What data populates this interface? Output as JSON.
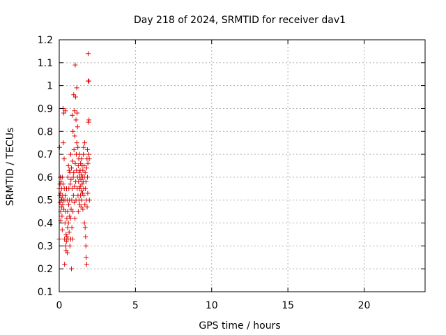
{
  "chart_data": {
    "type": "scatter",
    "title": "Day 218 of 2024, SRMTID for receiver dav1",
    "xlabel": "GPS time / hours",
    "ylabel": "SRMTID / TECUs",
    "xlim": [
      0,
      24
    ],
    "ylim": [
      0.1,
      1.2
    ],
    "x_ticks": [
      0,
      5,
      10,
      15,
      20
    ],
    "y_ticks": [
      0.1,
      0.2,
      0.3,
      0.4,
      0.5,
      0.6,
      0.7,
      0.8,
      0.9,
      1,
      1.1,
      1.2
    ],
    "x_tick_labels": [
      "0",
      "5",
      "10",
      "15",
      "20"
    ],
    "y_tick_labels": [
      "0.1",
      "0.2",
      "0.3",
      "0.4",
      "0.5",
      "0.6",
      "0.7",
      "0.8",
      "0.9",
      "1",
      "1.1",
      "1.2"
    ],
    "grid": true,
    "marker": "+",
    "color": "#e00000",
    "points": [
      [
        0.0,
        0.55
      ],
      [
        0.0,
        0.33
      ],
      [
        0.02,
        0.73
      ],
      [
        0.03,
        0.52
      ],
      [
        0.05,
        0.57
      ],
      [
        0.05,
        0.49
      ],
      [
        0.07,
        0.6
      ],
      [
        0.08,
        0.53
      ],
      [
        0.1,
        0.45
      ],
      [
        0.1,
        0.41
      ],
      [
        0.12,
        0.58
      ],
      [
        0.13,
        0.51
      ],
      [
        0.15,
        0.47
      ],
      [
        0.15,
        0.55
      ],
      [
        0.17,
        0.5
      ],
      [
        0.18,
        0.43
      ],
      [
        0.2,
        0.6
      ],
      [
        0.2,
        0.37
      ],
      [
        0.22,
        0.52
      ],
      [
        0.23,
        0.48
      ],
      [
        0.25,
        0.9
      ],
      [
        0.25,
        0.57
      ],
      [
        0.27,
        0.75
      ],
      [
        0.28,
        0.5
      ],
      [
        0.3,
        0.88
      ],
      [
        0.3,
        0.46
      ],
      [
        0.32,
        0.68
      ],
      [
        0.33,
        0.55
      ],
      [
        0.35,
        0.22
      ],
      [
        0.35,
        0.33
      ],
      [
        0.37,
        0.5
      ],
      [
        0.38,
        0.4
      ],
      [
        0.4,
        0.89
      ],
      [
        0.4,
        0.52
      ],
      [
        0.42,
        0.3
      ],
      [
        0.43,
        0.45
      ],
      [
        0.45,
        0.35
      ],
      [
        0.45,
        0.28
      ],
      [
        0.47,
        0.32
      ],
      [
        0.48,
        0.55
      ],
      [
        0.5,
        0.42
      ],
      [
        0.5,
        0.34
      ],
      [
        0.52,
        0.5
      ],
      [
        0.53,
        0.27
      ],
      [
        0.55,
        0.38
      ],
      [
        0.55,
        0.45
      ],
      [
        0.57,
        0.6
      ],
      [
        0.58,
        0.33
      ],
      [
        0.6,
        0.65
      ],
      [
        0.6,
        0.4
      ],
      [
        0.62,
        0.48
      ],
      [
        0.63,
        0.55
      ],
      [
        0.65,
        0.63
      ],
      [
        0.65,
        0.36
      ],
      [
        0.67,
        0.5
      ],
      [
        0.68,
        0.43
      ],
      [
        0.7,
        0.62
      ],
      [
        0.7,
        0.3
      ],
      [
        0.72,
        0.57
      ],
      [
        0.73,
        0.42
      ],
      [
        0.75,
        0.7
      ],
      [
        0.75,
        0.33
      ],
      [
        0.77,
        0.59
      ],
      [
        0.78,
        0.46
      ],
      [
        0.8,
        0.64
      ],
      [
        0.8,
        0.2
      ],
      [
        0.82,
        0.5
      ],
      [
        0.83,
        0.38
      ],
      [
        0.85,
        0.87
      ],
      [
        0.85,
        0.55
      ],
      [
        0.87,
        0.67
      ],
      [
        0.88,
        0.33
      ],
      [
        0.9,
        0.8
      ],
      [
        0.9,
        0.45
      ],
      [
        0.92,
        0.6
      ],
      [
        0.93,
        0.52
      ],
      [
        0.95,
        0.96
      ],
      [
        0.95,
        0.62
      ],
      [
        0.97,
        0.72
      ],
      [
        0.98,
        0.49
      ],
      [
        1.0,
        0.89
      ],
      [
        1.0,
        0.56
      ],
      [
        1.02,
        0.78
      ],
      [
        1.03,
        0.42
      ],
      [
        1.05,
        1.09
      ],
      [
        1.05,
        0.66
      ],
      [
        1.07,
        0.95
      ],
      [
        1.08,
        0.58
      ],
      [
        1.1,
        0.85
      ],
      [
        1.1,
        0.5
      ],
      [
        1.12,
        0.7
      ],
      [
        1.13,
        0.63
      ],
      [
        1.15,
        0.99
      ],
      [
        1.15,
        0.75
      ],
      [
        1.17,
        0.88
      ],
      [
        1.18,
        0.55
      ],
      [
        1.2,
        0.82
      ],
      [
        1.2,
        0.6
      ],
      [
        1.22,
        0.73
      ],
      [
        1.23,
        0.52
      ],
      [
        1.25,
        0.65
      ],
      [
        1.25,
        0.45
      ],
      [
        1.27,
        0.58
      ],
      [
        1.28,
        0.68
      ],
      [
        1.3,
        0.62
      ],
      [
        1.3,
        0.5
      ],
      [
        1.32,
        0.55
      ],
      [
        1.33,
        0.7
      ],
      [
        1.35,
        0.6
      ],
      [
        1.35,
        0.48
      ],
      [
        1.37,
        0.63
      ],
      [
        1.38,
        0.56
      ],
      [
        1.4,
        0.52
      ],
      [
        1.4,
        0.66
      ],
      [
        1.42,
        0.59
      ],
      [
        1.43,
        0.47
      ],
      [
        1.45,
        0.61
      ],
      [
        1.45,
        0.54
      ],
      [
        1.47,
        0.68
      ],
      [
        1.48,
        0.5
      ],
      [
        1.5,
        0.65
      ],
      [
        1.5,
        0.57
      ],
      [
        1.52,
        0.6
      ],
      [
        1.53,
        0.53
      ],
      [
        1.55,
        0.63
      ],
      [
        1.55,
        0.46
      ],
      [
        1.57,
        0.58
      ],
      [
        1.58,
        0.7
      ],
      [
        1.6,
        0.73
      ],
      [
        1.6,
        0.55
      ],
      [
        1.62,
        0.52
      ],
      [
        1.63,
        0.65
      ],
      [
        1.65,
        0.4
      ],
      [
        1.65,
        0.6
      ],
      [
        1.67,
        0.75
      ],
      [
        1.68,
        0.48
      ],
      [
        1.7,
        0.38
      ],
      [
        1.7,
        0.62
      ],
      [
        1.72,
        0.55
      ],
      [
        1.73,
        0.34
      ],
      [
        1.75,
        0.3
      ],
      [
        1.75,
        0.58
      ],
      [
        1.77,
        0.25
      ],
      [
        1.78,
        0.5
      ],
      [
        1.8,
        0.22
      ],
      [
        1.8,
        0.64
      ],
      [
        1.82,
        0.68
      ],
      [
        1.83,
        0.47
      ],
      [
        1.85,
        0.6
      ],
      [
        1.85,
        0.72
      ],
      [
        1.87,
        0.53
      ],
      [
        1.88,
        0.66
      ],
      [
        1.9,
        1.14
      ],
      [
        1.9,
        1.02
      ],
      [
        1.92,
        0.84
      ],
      [
        1.93,
        0.7
      ],
      [
        1.95,
        1.02
      ],
      [
        1.95,
        0.85
      ],
      [
        1.97,
        0.68
      ],
      [
        1.98,
        0.5
      ]
    ]
  }
}
